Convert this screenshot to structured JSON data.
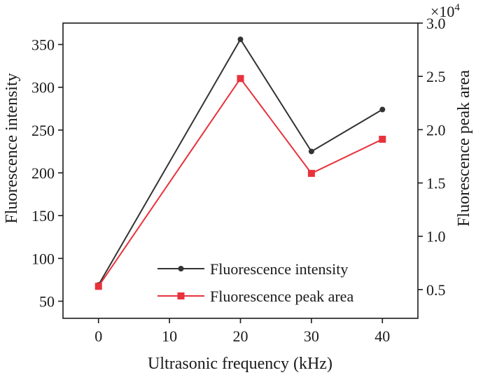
{
  "chart_data": {
    "type": "line",
    "x": [
      0,
      20,
      30,
      40
    ],
    "xlabel": "Ultrasonic frequency (kHz)",
    "ylabel": "Fluorescence intensity",
    "y2label": "Fluorescence peak area",
    "xlim": [
      -5,
      45
    ],
    "ylim": [
      30,
      375
    ],
    "y2lim": [
      0.23,
      3.0
    ],
    "xticks": [
      "0",
      "10",
      "20",
      "30",
      "40"
    ],
    "yticks": [
      "50",
      "100",
      "150",
      "200",
      "250",
      "300",
      "350"
    ],
    "y2ticks": [
      "0.5",
      "1.0",
      "1.5",
      "2.0",
      "2.5",
      "3.0"
    ],
    "y2_multiplier_base": "×10",
    "y2_multiplier_exp": "4",
    "legend_position": "bottom-right",
    "grid": false,
    "series": [
      {
        "name": "Fluorescence intensity",
        "axis": "left",
        "marker": "circle",
        "color": "#333333",
        "values": [
          69,
          356,
          225,
          274
        ]
      },
      {
        "name": "Fluorescence peak area",
        "axis": "right",
        "marker": "square",
        "color": "#e8323c",
        "values": [
          0.53,
          2.48,
          1.59,
          1.91
        ]
      }
    ]
  }
}
